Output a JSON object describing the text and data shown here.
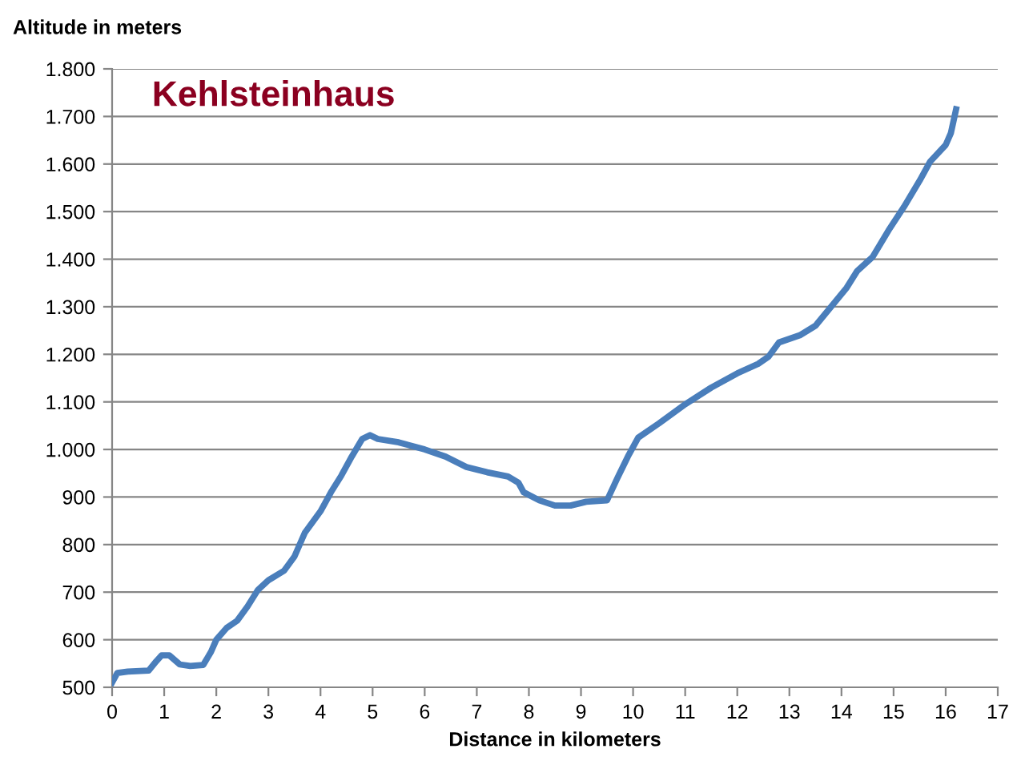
{
  "chart_data": {
    "type": "line",
    "ylabel": "Altitude in meters",
    "xlabel": "Distance in kilometers",
    "annotations": [
      "Kehlsteinhaus"
    ],
    "x": [
      0,
      0.1,
      0.3,
      0.7,
      0.85,
      0.95,
      1.1,
      1.3,
      1.5,
      1.75,
      1.9,
      2.0,
      2.2,
      2.4,
      2.6,
      2.8,
      3.0,
      3.3,
      3.5,
      3.7,
      4.0,
      4.2,
      4.4,
      4.6,
      4.8,
      4.95,
      5.1,
      5.5,
      6.0,
      6.4,
      6.8,
      7.2,
      7.6,
      7.8,
      7.9,
      8.2,
      8.5,
      8.8,
      9.1,
      9.5,
      9.7,
      9.9,
      10.1,
      10.5,
      11.0,
      11.5,
      12.0,
      12.4,
      12.6,
      12.8,
      13.2,
      13.5,
      13.8,
      14.1,
      14.3,
      14.6,
      14.9,
      15.2,
      15.5,
      15.7,
      16.0,
      16.1,
      16.2
    ],
    "series": [
      {
        "color": "#4a7ebb",
        "values": [
          510,
          530,
          533,
          535,
          555,
          567,
          567,
          548,
          545,
          547,
          575,
          600,
          625,
          640,
          670,
          705,
          725,
          745,
          775,
          825,
          870,
          910,
          945,
          985,
          1022,
          1030,
          1022,
          1015,
          1000,
          985,
          963,
          952,
          943,
          930,
          910,
          893,
          882,
          882,
          890,
          893,
          940,
          985,
          1025,
          1055,
          1095,
          1130,
          1160,
          1180,
          1195,
          1225,
          1240,
          1260,
          1300,
          1340,
          1375,
          1405,
          1460,
          1510,
          1565,
          1605,
          1640,
          1665,
          1715
        ]
      }
    ],
    "xlim": [
      0,
      17
    ],
    "xticks": [
      0,
      1,
      2,
      3,
      4,
      5,
      6,
      7,
      8,
      9,
      10,
      11,
      12,
      13,
      14,
      15,
      16,
      17
    ],
    "ylim": [
      500,
      1800
    ],
    "yticks": [
      500,
      600,
      700,
      800,
      900,
      {
        "value": 1000,
        "label": "1.000"
      },
      {
        "value": 1100,
        "label": "1.100"
      },
      {
        "value": 1200,
        "label": "1.200"
      },
      {
        "value": 1300,
        "label": "1.300"
      },
      {
        "value": 1400,
        "label": "1.400"
      },
      {
        "value": 1500,
        "label": "1.500"
      },
      {
        "value": 1600,
        "label": "1.600"
      },
      {
        "value": 1700,
        "label": "1.700"
      },
      {
        "value": 1800,
        "label": "1.800"
      }
    ],
    "grid": "y",
    "legend": false,
    "marker": "none",
    "line_style": "solid"
  }
}
